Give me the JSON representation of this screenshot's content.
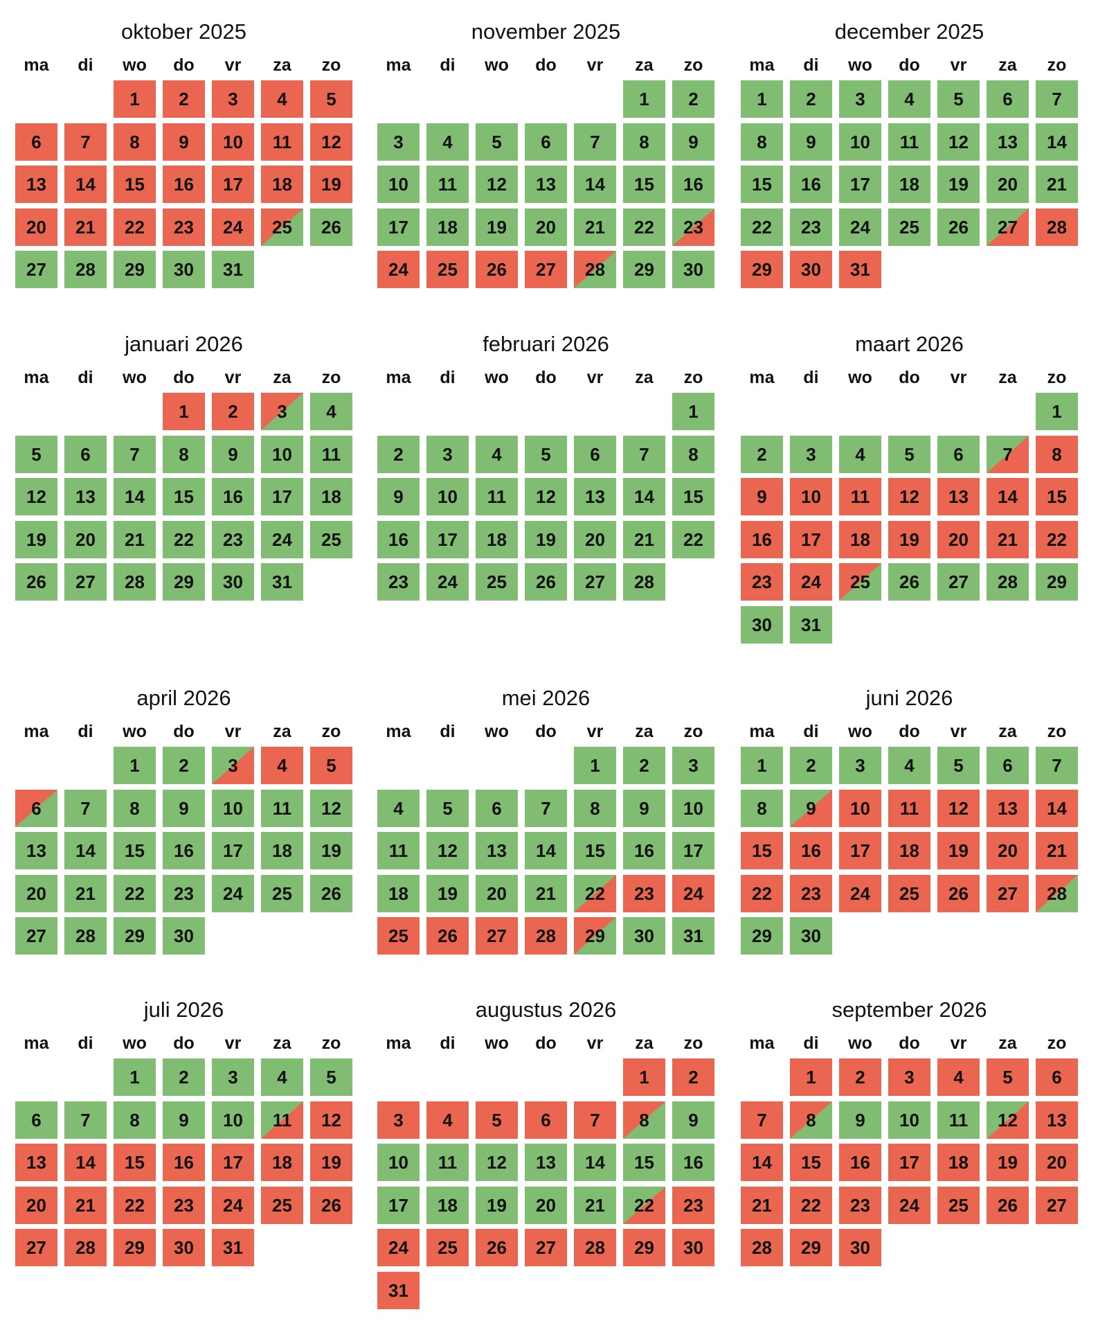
{
  "colors": {
    "red": "#eb6651",
    "green": "#80bd72"
  },
  "weekdays": [
    "ma",
    "di",
    "wo",
    "do",
    "vr",
    "za",
    "zo"
  ],
  "months": [
    {
      "title": "oktober 2025",
      "start_weekday": 2,
      "days": 31,
      "segments": [
        [
          "r",
          1,
          24
        ],
        [
          "rg",
          25,
          25
        ],
        [
          "g",
          26,
          31
        ]
      ]
    },
    {
      "title": "november 2025",
      "start_weekday": 5,
      "days": 30,
      "segments": [
        [
          "g",
          1,
          22
        ],
        [
          "gr",
          23,
          23
        ],
        [
          "r",
          24,
          27
        ],
        [
          "rg",
          28,
          28
        ],
        [
          "g",
          29,
          30
        ]
      ]
    },
    {
      "title": "december 2025",
      "start_weekday": 0,
      "days": 31,
      "segments": [
        [
          "g",
          1,
          26
        ],
        [
          "gr",
          27,
          27
        ],
        [
          "r",
          28,
          31
        ]
      ]
    },
    {
      "title": "januari 2026",
      "start_weekday": 3,
      "days": 31,
      "segments": [
        [
          "r",
          1,
          2
        ],
        [
          "rg",
          3,
          3
        ],
        [
          "g",
          4,
          31
        ]
      ]
    },
    {
      "title": "februari 2026",
      "start_weekday": 6,
      "days": 28,
      "segments": [
        [
          "g",
          1,
          28
        ]
      ]
    },
    {
      "title": "maart 2026",
      "start_weekday": 6,
      "days": 31,
      "segments": [
        [
          "g",
          1,
          6
        ],
        [
          "gr",
          7,
          7
        ],
        [
          "r",
          8,
          24
        ],
        [
          "rg",
          25,
          25
        ],
        [
          "g",
          26,
          31
        ]
      ]
    },
    {
      "title": "april 2026",
      "start_weekday": 2,
      "days": 30,
      "segments": [
        [
          "g",
          1,
          2
        ],
        [
          "gr",
          3,
          3
        ],
        [
          "r",
          4,
          5
        ],
        [
          "rg",
          6,
          6
        ],
        [
          "g",
          7,
          30
        ]
      ]
    },
    {
      "title": "mei 2026",
      "start_weekday": 4,
      "days": 31,
      "segments": [
        [
          "g",
          1,
          21
        ],
        [
          "gr",
          22,
          22
        ],
        [
          "r",
          23,
          28
        ],
        [
          "rg",
          29,
          29
        ],
        [
          "g",
          30,
          31
        ]
      ]
    },
    {
      "title": "juni 2026",
      "start_weekday": 0,
      "days": 30,
      "segments": [
        [
          "g",
          1,
          8
        ],
        [
          "gr",
          9,
          9
        ],
        [
          "r",
          10,
          27
        ],
        [
          "rg",
          28,
          28
        ],
        [
          "g",
          29,
          30
        ]
      ]
    },
    {
      "title": "juli 2026",
      "start_weekday": 2,
      "days": 31,
      "segments": [
        [
          "g",
          1,
          10
        ],
        [
          "gr",
          11,
          11
        ],
        [
          "r",
          12,
          31
        ]
      ]
    },
    {
      "title": "augustus 2026",
      "start_weekday": 5,
      "days": 31,
      "segments": [
        [
          "r",
          1,
          7
        ],
        [
          "rg",
          8,
          8
        ],
        [
          "g",
          9,
          21
        ],
        [
          "gr",
          22,
          22
        ],
        [
          "r",
          23,
          31
        ]
      ]
    },
    {
      "title": "september 2026",
      "start_weekday": 1,
      "days": 30,
      "segments": [
        [
          "r",
          1,
          7
        ],
        [
          "rg",
          8,
          8
        ],
        [
          "g",
          9,
          11
        ],
        [
          "gr",
          12,
          12
        ],
        [
          "r",
          13,
          30
        ]
      ]
    }
  ]
}
